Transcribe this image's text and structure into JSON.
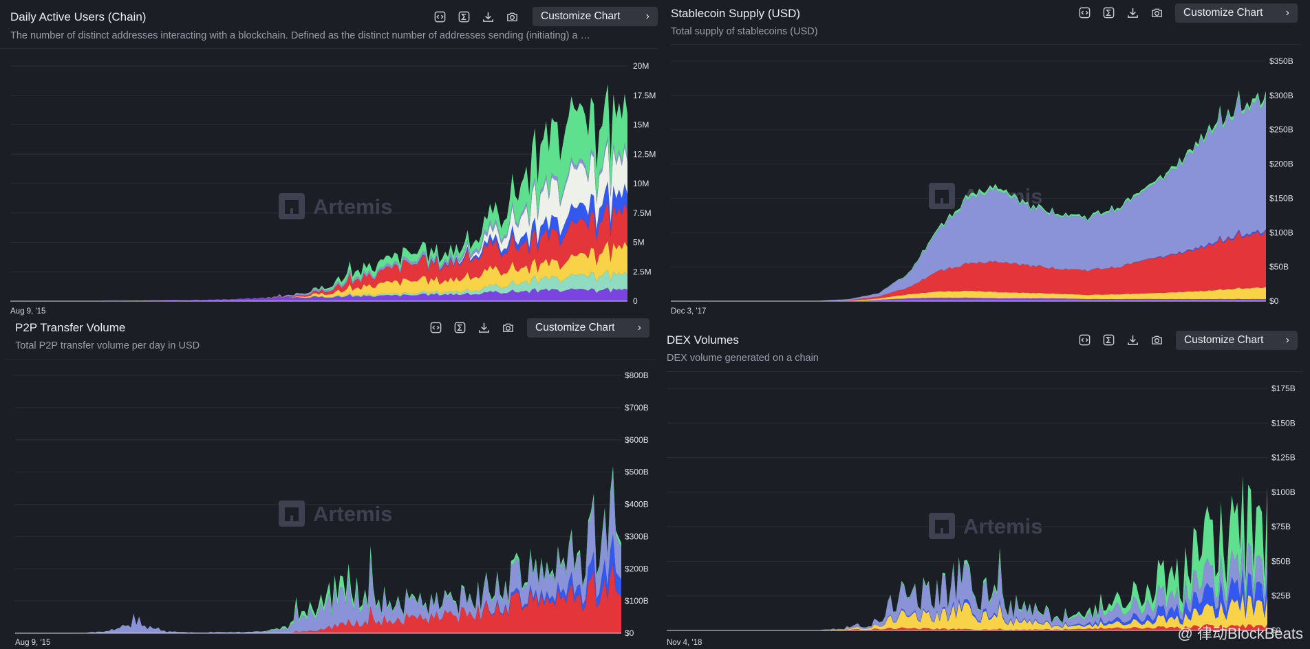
{
  "watermark": "Artemis",
  "credit": "@ 律动BlockBeats",
  "colors": {
    "green": "#5fe08e",
    "white": "#eef0ea",
    "blue": "#3358f0",
    "red": "#e4353a",
    "yellow": "#f8d347",
    "mint": "#8fdcc0",
    "purple": "#7b43e0",
    "lavender": "#8a92d8",
    "pink": "#e07ba8"
  },
  "panels": [
    {
      "id": "dau",
      "title": "Daily Active Users (Chain)",
      "subtitle": "The number of distinct addresses interacting with a blockchain. Defined as the distinct number of addresses sending (initiating) a …",
      "button": "Customize Chart",
      "x_start_label": "Aug 9, '15",
      "y_ticks": [
        "0",
        "2.5M",
        "5M",
        "7.5M",
        "10M",
        "12.5M",
        "15M",
        "17.5M",
        "20M"
      ],
      "icons": [
        "embed-icon",
        "sum-icon",
        "download-icon",
        "camera-icon"
      ]
    },
    {
      "id": "stable",
      "title": "Stablecoin Supply (USD)",
      "subtitle": "Total supply of stablecoins (USD)",
      "button": "Customize Chart",
      "x_start_label": "Dec 3, '17",
      "y_ticks": [
        "$0",
        "$50B",
        "$100B",
        "$150B",
        "$200B",
        "$250B",
        "$300B",
        "$350B"
      ],
      "icons": [
        "embed-icon",
        "sum-icon",
        "download-icon",
        "camera-icon"
      ]
    },
    {
      "id": "p2p",
      "title": "P2P Transfer Volume",
      "subtitle": "Total P2P transfer volume per day in USD",
      "button": "Customize Chart",
      "x_start_label": "Aug 9, '15",
      "y_ticks": [
        "$0",
        "$100B",
        "$200B",
        "$300B",
        "$400B",
        "$500B",
        "$600B",
        "$700B",
        "$800B"
      ],
      "icons": [
        "embed-icon",
        "sum-icon",
        "download-icon",
        "camera-icon"
      ]
    },
    {
      "id": "dex",
      "title": "DEX Volumes",
      "subtitle": "DEX volume generated on a chain",
      "button": "Customize Chart",
      "x_start_label": "Nov 4, '18",
      "y_ticks": [
        "$0",
        "$25B",
        "$50B",
        "$75B",
        "$100B",
        "$125B",
        "$150B",
        "$175B"
      ],
      "icons": [
        "embed-icon",
        "sum-icon",
        "download-icon",
        "camera-icon"
      ]
    }
  ],
  "chart_data": [
    {
      "id": "dau",
      "type": "area",
      "stacked": true,
      "title": "Daily Active Users (Chain)",
      "ylim": [
        0,
        20000000
      ],
      "grid": true,
      "x": [
        0,
        0.05,
        0.1,
        0.15,
        0.2,
        0.25,
        0.3,
        0.35,
        0.4,
        0.45,
        0.5,
        0.55,
        0.6,
        0.65,
        0.7,
        0.75,
        0.8,
        0.85,
        0.9,
        0.95,
        1.0
      ],
      "series": [
        {
          "color": "purple",
          "values": [
            0,
            0,
            10000,
            30000,
            50000,
            80000,
            100000,
            150000,
            250000,
            300000,
            350000,
            400000,
            450000,
            500000,
            600000,
            600000,
            800000,
            900000,
            900000,
            900000,
            900000
          ]
        },
        {
          "color": "mint",
          "values": [
            0,
            0,
            0,
            0,
            0,
            0,
            0,
            0,
            0,
            0,
            50000,
            80000,
            100000,
            150000,
            200000,
            300000,
            600000,
            900000,
            1000000,
            1200000,
            1200000
          ]
        },
        {
          "color": "yellow",
          "values": [
            0,
            0,
            0,
            0,
            0,
            0,
            0,
            0,
            0,
            0,
            200000,
            500000,
            900000,
            1100000,
            1000000,
            1200000,
            1400000,
            1200000,
            1300000,
            1800000,
            2200000
          ]
        },
        {
          "color": "red",
          "values": [
            0,
            0,
            0,
            0,
            0,
            0,
            0,
            0,
            0,
            50000,
            200000,
            600000,
            1000000,
            1500000,
            1400000,
            1700000,
            2000000,
            2100000,
            2400000,
            2600000,
            2800000
          ]
        },
        {
          "color": "blue",
          "values": [
            0,
            0,
            0,
            0,
            0,
            0,
            0,
            0,
            0,
            0,
            0,
            0,
            0,
            0,
            100000,
            200000,
            500000,
            800000,
            1100000,
            1300000,
            1400000
          ]
        },
        {
          "color": "white",
          "values": [
            0,
            0,
            0,
            0,
            0,
            0,
            0,
            0,
            0,
            0,
            0,
            0,
            0,
            0,
            0,
            200000,
            1000000,
            2500000,
            3000000,
            2800000,
            2600000
          ]
        },
        {
          "color": "lavender",
          "values": [
            0,
            0,
            0,
            0,
            0,
            0,
            0,
            0,
            0,
            100000,
            150000,
            200000,
            200000,
            250000,
            250000,
            300000,
            300000,
            300000,
            300000,
            300000,
            300000
          ]
        },
        {
          "color": "green",
          "values": [
            0,
            0,
            0,
            0,
            0,
            0,
            0,
            0,
            0,
            0,
            100000,
            500000,
            600000,
            700000,
            600000,
            700000,
            1500000,
            3500000,
            4500000,
            3500000,
            3500000
          ]
        }
      ]
    },
    {
      "id": "stable",
      "type": "area",
      "stacked": true,
      "title": "Stablecoin Supply (USD)",
      "ylim": [
        0,
        350000000000
      ],
      "grid": true,
      "x": [
        0,
        0.05,
        0.1,
        0.15,
        0.2,
        0.25,
        0.3,
        0.35,
        0.4,
        0.45,
        0.5,
        0.55,
        0.6,
        0.65,
        0.7,
        0.75,
        0.8,
        0.85,
        0.9,
        0.95,
        1.0
      ],
      "series": [
        {
          "color": "purple",
          "values": [
            0,
            0,
            0,
            0,
            0,
            0,
            0,
            2000000000,
            4000000000,
            5000000000,
            5000000000,
            4000000000,
            4000000000,
            4000000000,
            3000000000,
            3000000000,
            3000000000,
            3000000000,
            3000000000,
            3000000000,
            3000000000
          ]
        },
        {
          "color": "yellow",
          "values": [
            0,
            0,
            0,
            0,
            0,
            0,
            500000000,
            2000000000,
            6000000000,
            9000000000,
            10000000000,
            9000000000,
            8000000000,
            7000000000,
            6000000000,
            7000000000,
            8000000000,
            10000000000,
            12000000000,
            15000000000,
            17000000000
          ]
        },
        {
          "color": "red",
          "values": [
            0,
            0,
            0,
            0,
            0,
            0,
            1000000000,
            3000000000,
            10000000000,
            30000000000,
            40000000000,
            44000000000,
            40000000000,
            37000000000,
            36000000000,
            40000000000,
            48000000000,
            55000000000,
            65000000000,
            75000000000,
            80000000000
          ]
        },
        {
          "color": "blue",
          "values": [
            0,
            0,
            0,
            0,
            0,
            0,
            0,
            0,
            0,
            0,
            0,
            0,
            0,
            0,
            0,
            0,
            500000000,
            1000000000,
            1500000000,
            2000000000,
            2500000000
          ]
        },
        {
          "color": "lavender",
          "values": [
            0,
            0,
            0,
            0,
            0,
            500000000,
            1500000000,
            5000000000,
            20000000000,
            60000000000,
            95000000000,
            105000000000,
            85000000000,
            80000000000,
            75000000000,
            85000000000,
            100000000000,
            125000000000,
            160000000000,
            180000000000,
            190000000000
          ]
        },
        {
          "color": "green",
          "values": [
            0,
            0,
            0,
            0,
            0,
            0,
            0,
            0,
            1000000000,
            3000000000,
            4000000000,
            4000000000,
            3000000000,
            2500000000,
            2500000000,
            3000000000,
            3000000000,
            4000000000,
            5000000000,
            5000000000,
            6000000000
          ]
        }
      ]
    },
    {
      "id": "p2p",
      "type": "area",
      "stacked": true,
      "title": "P2P Transfer Volume",
      "ylim": [
        0,
        800000000000
      ],
      "grid": true,
      "x": [
        0,
        0.05,
        0.1,
        0.15,
        0.2,
        0.25,
        0.3,
        0.35,
        0.4,
        0.45,
        0.5,
        0.55,
        0.6,
        0.65,
        0.7,
        0.75,
        0.8,
        0.85,
        0.9,
        0.95,
        1.0
      ],
      "series": [
        {
          "color": "red",
          "values": [
            0,
            0,
            0,
            0,
            0,
            0,
            0,
            0,
            0,
            0,
            10000000000,
            30000000000,
            40000000000,
            45000000000,
            50000000000,
            60000000000,
            80000000000,
            100000000000,
            110000000000,
            130000000000,
            170000000000
          ]
        },
        {
          "color": "blue",
          "values": [
            0,
            0,
            0,
            0,
            0,
            0,
            0,
            0,
            0,
            0,
            0,
            0,
            0,
            0,
            0,
            0,
            5000000000,
            10000000000,
            20000000000,
            40000000000,
            80000000000
          ]
        },
        {
          "color": "lavender",
          "values": [
            0,
            0,
            0,
            5000000000,
            30000000000,
            5000000000,
            2000000000,
            3000000000,
            5000000000,
            15000000000,
            70000000000,
            90000000000,
            60000000000,
            50000000000,
            40000000000,
            45000000000,
            60000000000,
            70000000000,
            80000000000,
            110000000000,
            150000000000
          ]
        },
        {
          "color": "green",
          "values": [
            0,
            0,
            0,
            0,
            0,
            0,
            0,
            0,
            0,
            5000000000,
            20000000000,
            30000000000,
            10000000000,
            5000000000,
            5000000000,
            5000000000,
            10000000000,
            10000000000,
            10000000000,
            10000000000,
            20000000000
          ]
        }
      ]
    },
    {
      "id": "dex",
      "type": "area",
      "stacked": true,
      "title": "DEX Volumes",
      "ylim": [
        0,
        175000000000
      ],
      "grid": true,
      "x": [
        0,
        0.05,
        0.1,
        0.15,
        0.2,
        0.25,
        0.3,
        0.35,
        0.4,
        0.45,
        0.5,
        0.55,
        0.6,
        0.65,
        0.7,
        0.75,
        0.8,
        0.85,
        0.9,
        0.95,
        1.0
      ],
      "series": [
        {
          "color": "red",
          "values": [
            0,
            0,
            0,
            0,
            0,
            0,
            500000000,
            1000000000,
            2000000000,
            1000000000,
            800000000,
            500000000,
            500000000,
            800000000,
            1000000000,
            1500000000,
            2000000000,
            2000000000,
            3000000000,
            3000000000,
            3000000000
          ]
        },
        {
          "color": "yellow",
          "values": [
            0,
            0,
            0,
            0,
            0,
            0,
            500000000,
            2000000000,
            12000000000,
            8000000000,
            15000000000,
            7000000000,
            5000000000,
            3000000000,
            2000000000,
            3000000000,
            5000000000,
            6000000000,
            10000000000,
            15000000000,
            14000000000
          ]
        },
        {
          "color": "blue",
          "values": [
            0,
            0,
            0,
            0,
            0,
            0,
            0,
            0,
            1000000000,
            500000000,
            2000000000,
            1000000000,
            500000000,
            500000000,
            1000000000,
            2000000000,
            4000000000,
            6000000000,
            10000000000,
            12000000000,
            10000000000
          ]
        },
        {
          "color": "lavender",
          "values": [
            0,
            0,
            0,
            0,
            0,
            0,
            1000000000,
            3000000000,
            18000000000,
            14000000000,
            20000000000,
            12000000000,
            7000000000,
            6000000000,
            5000000000,
            7000000000,
            10000000000,
            9000000000,
            12000000000,
            15000000000,
            15000000000
          ]
        },
        {
          "color": "green",
          "values": [
            0,
            0,
            0,
            0,
            0,
            0,
            0,
            0,
            1000000000,
            1000000000,
            2000000000,
            2000000000,
            1000000000,
            1000000000,
            2000000000,
            5000000000,
            10000000000,
            15000000000,
            25000000000,
            30000000000,
            28000000000
          ]
        }
      ]
    }
  ]
}
